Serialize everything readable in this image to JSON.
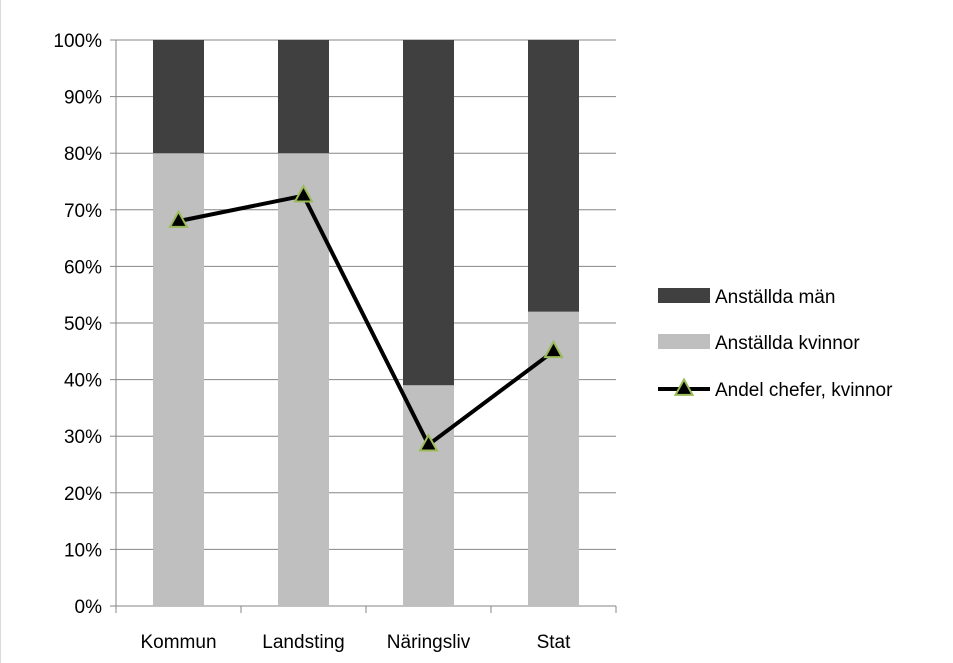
{
  "chart_data": {
    "type": "bar",
    "stacked": true,
    "categories": [
      "Kommun",
      "Landsting",
      "Näringsliv",
      "Stat"
    ],
    "series": [
      {
        "name": "Anställda män",
        "kind": "bar",
        "color": "#404040",
        "values": [
          20,
          20,
          61,
          48
        ]
      },
      {
        "name": "Anställda kvinnor",
        "kind": "bar",
        "color": "#bfbfbf",
        "values": [
          80,
          80,
          39,
          52
        ]
      },
      {
        "name": "Andel chefer, kvinnor",
        "kind": "line",
        "color": "#000000",
        "marker": "triangle",
        "marker_fill": "#000000",
        "marker_edge": "#9bbb59",
        "values": [
          68,
          72.5,
          28.5,
          45
        ]
      }
    ],
    "ylim": [
      0,
      100
    ],
    "yticks": [
      "0%",
      "10%",
      "20%",
      "30%",
      "40%",
      "50%",
      "60%",
      "70%",
      "80%",
      "90%",
      "100%"
    ],
    "grid": true,
    "legend_position": "right"
  }
}
